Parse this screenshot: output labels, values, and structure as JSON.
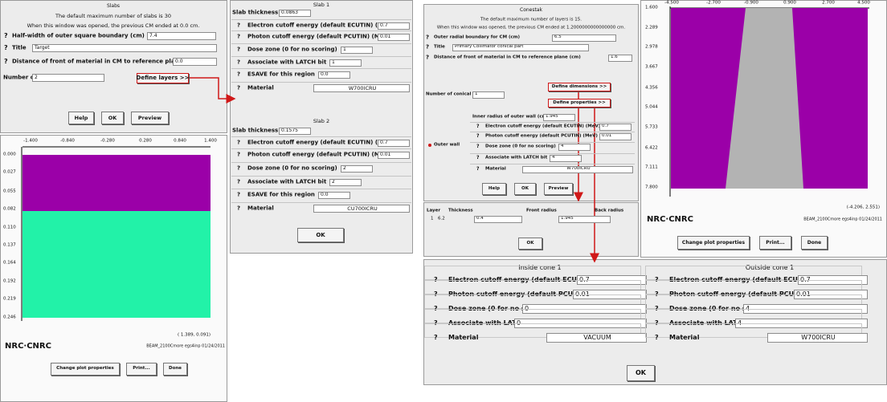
{
  "help_mark": "?",
  "slabs_dialog": {
    "title": "Slabs",
    "info": [
      "The default maximum number of slabs is 30",
      "When this window was opened, the previous CM ended at 0.0 cm."
    ],
    "fields": [
      {
        "label": "Half-width of outer square boundary (cm)",
        "value": "7.4"
      },
      {
        "label": "Title",
        "value": "Target"
      },
      {
        "label": "Distance of front of material in CM to reference plane (cm)",
        "value": "0.0"
      }
    ],
    "count": {
      "label": "Number of slabs",
      "value": "2"
    },
    "define_button": "Define layers >>",
    "buttons": [
      "Help",
      "OK",
      "Preview"
    ]
  },
  "slab_plot": {
    "xticks": [
      "-1.400",
      "-0.840",
      "-0.280",
      "0.280",
      "0.840",
      "1.400"
    ],
    "yticks": [
      "0.000",
      "0.027",
      "0.055",
      "0.082",
      "0.110",
      "0.137",
      "0.164",
      "0.192",
      "0.219",
      "0.246"
    ],
    "cursor": "( 1.389, 0.091)",
    "logo": "NRC·CNRC",
    "stamp": "BEAM_2100Cmore egs4inp 01/24/2011",
    "buttons": [
      "Change plot properties",
      "Print...",
      "Done"
    ]
  },
  "slab_layers": {
    "slabs": [
      {
        "title": "Slab 1",
        "thickness": {
          "label": "Slab thickness (cm)",
          "value": "0.0863"
        },
        "fields": [
          {
            "label": "Electron cutoff energy (default ECUTIN) (MeV)",
            "value": "0.7"
          },
          {
            "label": "Photon cutoff energy (default PCUTIN) (MeV)",
            "value": "0.01"
          },
          {
            "label": "Dose zone (0 for no scoring)",
            "value": "1"
          },
          {
            "label": "Associate with LATCH bit",
            "value": "1"
          },
          {
            "label": "ESAVE for this region",
            "value": "0.0"
          }
        ],
        "material": {
          "label": "Material",
          "value": "W700ICRU"
        }
      },
      {
        "title": "Slab 2",
        "thickness": {
          "label": "Slab thickness (cm)",
          "value": "0.1575"
        },
        "fields": [
          {
            "label": "Electron cutoff energy (default ECUTIN) (MeV)",
            "value": "0.7"
          },
          {
            "label": "Photon cutoff energy (default PCUTIN) (MeV)",
            "value": "0.01"
          },
          {
            "label": "Dose zone (0 for no scoring)",
            "value": "2"
          },
          {
            "label": "Associate with LATCH bit",
            "value": "2"
          },
          {
            "label": "ESAVE for this region",
            "value": "0.0"
          }
        ],
        "material": {
          "label": "Material",
          "value": "CU700ICRU"
        }
      }
    ],
    "ok": "OK"
  },
  "conestak_dialog": {
    "title": "Conestak",
    "info": [
      "The default maximum number of layers is 15.",
      "When this window was opened, the previous CM ended at 1.2000000000000000 cm."
    ],
    "fields": [
      {
        "label": "Outer radial boundary for CM (cm)",
        "value": "6.5"
      },
      {
        "label": "Title",
        "value": "Primary Collimator conical part"
      },
      {
        "label": "Distance of front of material in CM to reference plane (cm)",
        "value": "1.6"
      }
    ],
    "define_dimensions": "Define dimensions >>",
    "count": {
      "label": "Number of conical layers",
      "value": "1"
    },
    "define_properties": "Define properties >>",
    "inner_radius": {
      "label": "Inner radius of outer wall (cm)",
      "value": "1.945"
    },
    "outer_wall": {
      "label": "Outer wall",
      "fields": [
        {
          "label": "Electron cutoff energy (default ECUTIN) (MeV)",
          "value": "0.7"
        },
        {
          "label": "Photon cutoff energy (default PCUTIN) (MeV)",
          "value": "0.01"
        },
        {
          "label": "Dose zone (0 for no scoring)",
          "value": "4"
        },
        {
          "label": "Associate with LATCH bit",
          "value": "4"
        }
      ],
      "material": {
        "label": "Material",
        "value": "W700ICRU"
      }
    },
    "buttons": [
      "Help",
      "OK",
      "Preview"
    ]
  },
  "layer_table": {
    "columns": [
      "Layer",
      "Thickness",
      "Front radius",
      "Back radius"
    ],
    "rows": [
      [
        "1",
        "6.2",
        "0.4",
        "1.945"
      ]
    ],
    "ok": "OK"
  },
  "cone_plot": {
    "xticks": [
      "-4.500",
      "-2.700",
      "-0.900",
      "0.900",
      "2.700",
      "4.500"
    ],
    "yticks": [
      "1.600",
      "2.289",
      "2.978",
      "3.667",
      "4.356",
      "5.044",
      "5.733",
      "6.422",
      "7.111",
      "7.800"
    ],
    "cursor": "(-4.206, 2.551)",
    "logo": "NRC·CNRC",
    "stamp": "BEAM_2100Cmore egs4inp 01/24/2011",
    "buttons": [
      "Change plot properties",
      "Print...",
      "Done"
    ]
  },
  "cone_properties": {
    "panels": [
      {
        "title": "Inside cone 1",
        "fields": [
          {
            "label": "Electron cutoff energy (default ECUTIN) (MeV)",
            "value": "0.7"
          },
          {
            "label": "Photon cutoff energy (default PCUTIN) (MeV)",
            "value": "0.01"
          },
          {
            "label": "Dose zone (0 for no scoring)",
            "value": "0"
          },
          {
            "label": "Associate with LATCH bit",
            "value": "0"
          }
        ],
        "material": {
          "label": "Material",
          "value": "VACUUM"
        }
      },
      {
        "title": "Outside cone 1",
        "fields": [
          {
            "label": "Electron cutoff energy (default ECUTIN) (MeV)",
            "value": "0.7"
          },
          {
            "label": "Photon cutoff energy (default PCUTIN) (MeV)",
            "value": "0.01"
          },
          {
            "label": "Dose zone (0 for no scoring)",
            "value": "4"
          },
          {
            "label": "Associate with LATCH bit",
            "value": "4"
          }
        ],
        "material": {
          "label": "Material",
          "value": "W700ICRU"
        }
      }
    ],
    "ok": "OK"
  }
}
